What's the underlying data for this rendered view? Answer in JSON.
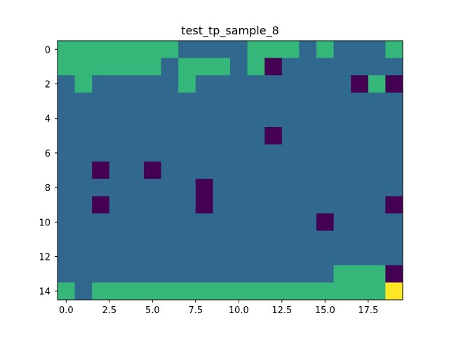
{
  "chart_data": {
    "type": "heatmap",
    "title": "test_tp_sample_8",
    "xlabel": "",
    "ylabel": "",
    "xlim": [
      -0.5,
      19.5
    ],
    "ylim": [
      14.5,
      -0.5
    ],
    "xticks": [
      "0.0",
      "2.5",
      "5.0",
      "7.5",
      "10.0",
      "12.5",
      "15.0",
      "17.5"
    ],
    "xtick_values": [
      0,
      2.5,
      5,
      7.5,
      10,
      12.5,
      15,
      17.5
    ],
    "yticks": [
      "0",
      "2",
      "4",
      "6",
      "8",
      "10",
      "12",
      "14"
    ],
    "ytick_values": [
      0,
      2,
      4,
      6,
      8,
      10,
      12,
      14
    ],
    "grid": false,
    "colormap": {
      "0": "#440154",
      "1": "#31688e",
      "2": "#35b779",
      "3": "#fde725"
    },
    "values": [
      [
        2,
        2,
        2,
        2,
        2,
        2,
        2,
        1,
        1,
        1,
        1,
        2,
        2,
        2,
        1,
        2,
        1,
        1,
        1,
        2
      ],
      [
        2,
        2,
        2,
        2,
        2,
        2,
        1,
        2,
        2,
        2,
        1,
        2,
        0,
        1,
        1,
        1,
        1,
        1,
        1,
        1
      ],
      [
        1,
        2,
        1,
        1,
        1,
        1,
        1,
        2,
        1,
        1,
        1,
        1,
        1,
        1,
        1,
        1,
        1,
        0,
        2,
        0
      ],
      [
        1,
        1,
        1,
        1,
        1,
        1,
        1,
        1,
        1,
        1,
        1,
        1,
        1,
        1,
        1,
        1,
        1,
        1,
        1,
        1
      ],
      [
        1,
        1,
        1,
        1,
        1,
        1,
        1,
        1,
        1,
        1,
        1,
        1,
        1,
        1,
        1,
        1,
        1,
        1,
        1,
        1
      ],
      [
        1,
        1,
        1,
        1,
        1,
        1,
        1,
        1,
        1,
        1,
        1,
        1,
        0,
        1,
        1,
        1,
        1,
        1,
        1,
        1
      ],
      [
        1,
        1,
        1,
        1,
        1,
        1,
        1,
        1,
        1,
        1,
        1,
        1,
        1,
        1,
        1,
        1,
        1,
        1,
        1,
        1
      ],
      [
        1,
        1,
        0,
        1,
        1,
        0,
        1,
        1,
        1,
        1,
        1,
        1,
        1,
        1,
        1,
        1,
        1,
        1,
        1,
        1
      ],
      [
        1,
        1,
        1,
        1,
        1,
        1,
        1,
        1,
        0,
        1,
        1,
        1,
        1,
        1,
        1,
        1,
        1,
        1,
        1,
        1
      ],
      [
        1,
        1,
        0,
        1,
        1,
        1,
        1,
        1,
        0,
        1,
        1,
        1,
        1,
        1,
        1,
        1,
        1,
        1,
        1,
        0
      ],
      [
        1,
        1,
        1,
        1,
        1,
        1,
        1,
        1,
        1,
        1,
        1,
        1,
        1,
        1,
        1,
        0,
        1,
        1,
        1,
        1
      ],
      [
        1,
        1,
        1,
        1,
        1,
        1,
        1,
        1,
        1,
        1,
        1,
        1,
        1,
        1,
        1,
        1,
        1,
        1,
        1,
        1
      ],
      [
        1,
        1,
        1,
        1,
        1,
        1,
        1,
        1,
        1,
        1,
        1,
        1,
        1,
        1,
        1,
        1,
        1,
        1,
        1,
        1
      ],
      [
        1,
        1,
        1,
        1,
        1,
        1,
        1,
        1,
        1,
        1,
        1,
        1,
        1,
        1,
        1,
        1,
        2,
        2,
        2,
        0
      ],
      [
        2,
        1,
        2,
        2,
        2,
        2,
        2,
        2,
        2,
        2,
        2,
        2,
        2,
        2,
        2,
        2,
        2,
        2,
        2,
        3
      ]
    ]
  }
}
